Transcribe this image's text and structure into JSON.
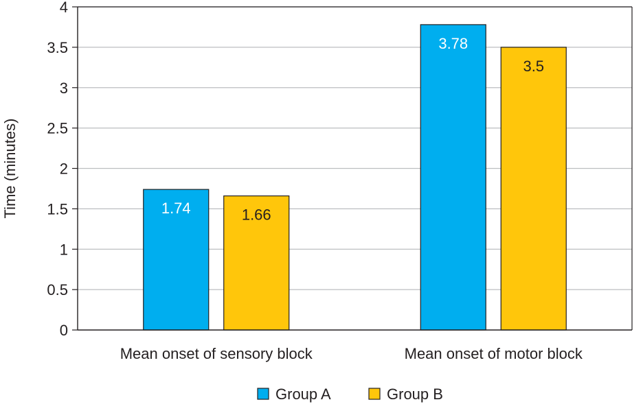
{
  "chart_data": {
    "type": "bar",
    "categories": [
      "Mean onset of sensory block",
      "Mean onset of motor block"
    ],
    "series": [
      {
        "name": "Group A",
        "values": [
          1.74,
          3.78
        ],
        "value_labels": [
          "1.74",
          "3.78"
        ],
        "color": "#00aeef",
        "label_color": "#ffffff"
      },
      {
        "name": "Group B",
        "values": [
          1.66,
          3.5
        ],
        "value_labels": [
          "1.66",
          "3.5"
        ],
        "color": "#ffc60b",
        "label_color": "#231f20"
      }
    ],
    "ylabel": "Time (minutes)",
    "ylim": [
      0,
      4
    ],
    "yticks": [
      0,
      0.5,
      1,
      1.5,
      2,
      2.5,
      3,
      3.5,
      4
    ],
    "ytick_labels": [
      "0",
      "0.5",
      "1",
      "1.5",
      "2",
      "2.5",
      "3",
      "3.5",
      "4"
    ],
    "grid": true,
    "legend_position": "bottom-center",
    "colors": {
      "grid": "#bcbec0",
      "axis": "#231f20",
      "bar_border": "#231f20"
    }
  }
}
